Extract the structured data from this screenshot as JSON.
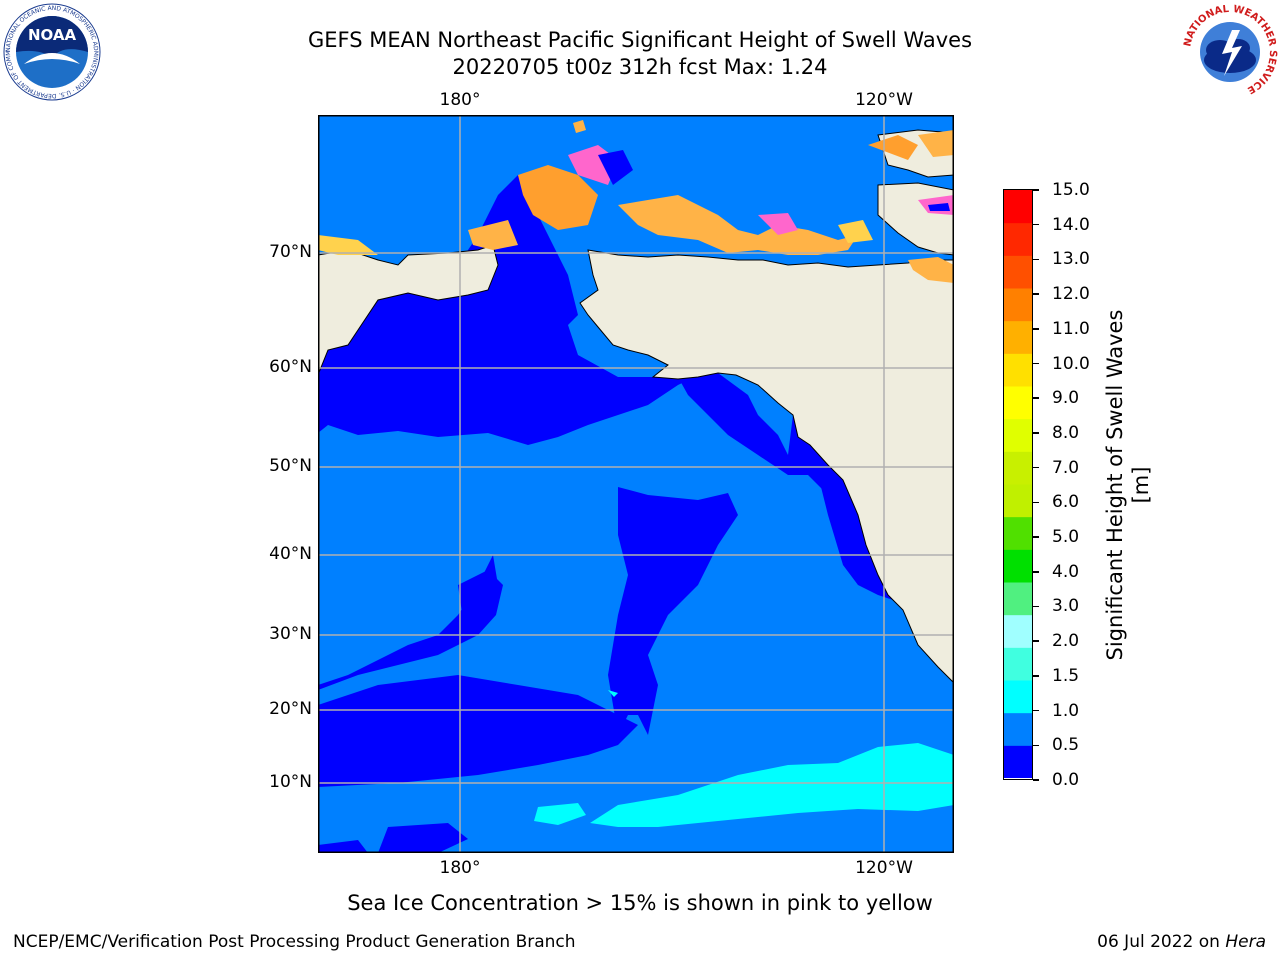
{
  "title": {
    "line1": "GEFS MEAN Northeast Pacific Significant Height of Swell Waves",
    "line2": "20220705 t00z 312h fcst   Max: 1.24"
  },
  "map": {
    "lon_ticks_top": [
      "180°",
      "120°W"
    ],
    "lon_ticks_bottom": [
      "180°",
      "120°W"
    ],
    "lat_ticks": [
      "70°N",
      "60°N",
      "50°N",
      "40°N",
      "30°N",
      "20°N",
      "10°N"
    ],
    "colors": {
      "land": "#efedde",
      "ocean_0_05": "#0000ff",
      "ocean_05_10": "#0080ff",
      "ocean_10_15": "#00ffff",
      "gridline": "#b0b0b0",
      "ice_pink": "#ff66cc",
      "ice_orange": "#ffb347",
      "ice_yellow": "#ffd24d"
    }
  },
  "colorbar": {
    "label": "Significant Height of Swell Waves [m]",
    "ticks": [
      "15.0",
      "14.0",
      "13.0",
      "12.0",
      "11.0",
      "10.0",
      "9.0",
      "8.0",
      "7.0",
      "6.0",
      "5.0",
      "4.0",
      "3.0",
      "2.0",
      "1.5",
      "1.0",
      "0.5",
      "0.0"
    ],
    "colors_bottom_to_top": [
      "#0000ff",
      "#0080ff",
      "#00ffff",
      "#40ffe0",
      "#a0ffff",
      "#50f080",
      "#00e000",
      "#50e000",
      "#c0f000",
      "#c8f000",
      "#e0ff00",
      "#ffff00",
      "#ffe000",
      "#ffb000",
      "#ff8000",
      "#ff5000",
      "#ff2800",
      "#ff0000"
    ]
  },
  "note": "Sea Ice Concentration > 15% is shown in pink to yellow",
  "footer": {
    "left": "NCEP/EMC/Verification Post Processing Product Generation Branch",
    "date": "06 Jul 2022 on ",
    "machine": "Hera"
  },
  "logos": {
    "noaa_icon": "noaa-logo-icon",
    "nws_icon": "nws-logo-icon",
    "noaa_text": "NOAA",
    "noaa_ring_text": "NATIONAL OCEANIC AND ATMOSPHERIC ADMINISTRATION · U.S. DEPARTMENT OF COMMERCE",
    "nws_ring_text": "NATIONAL WEATHER SERVICE"
  }
}
